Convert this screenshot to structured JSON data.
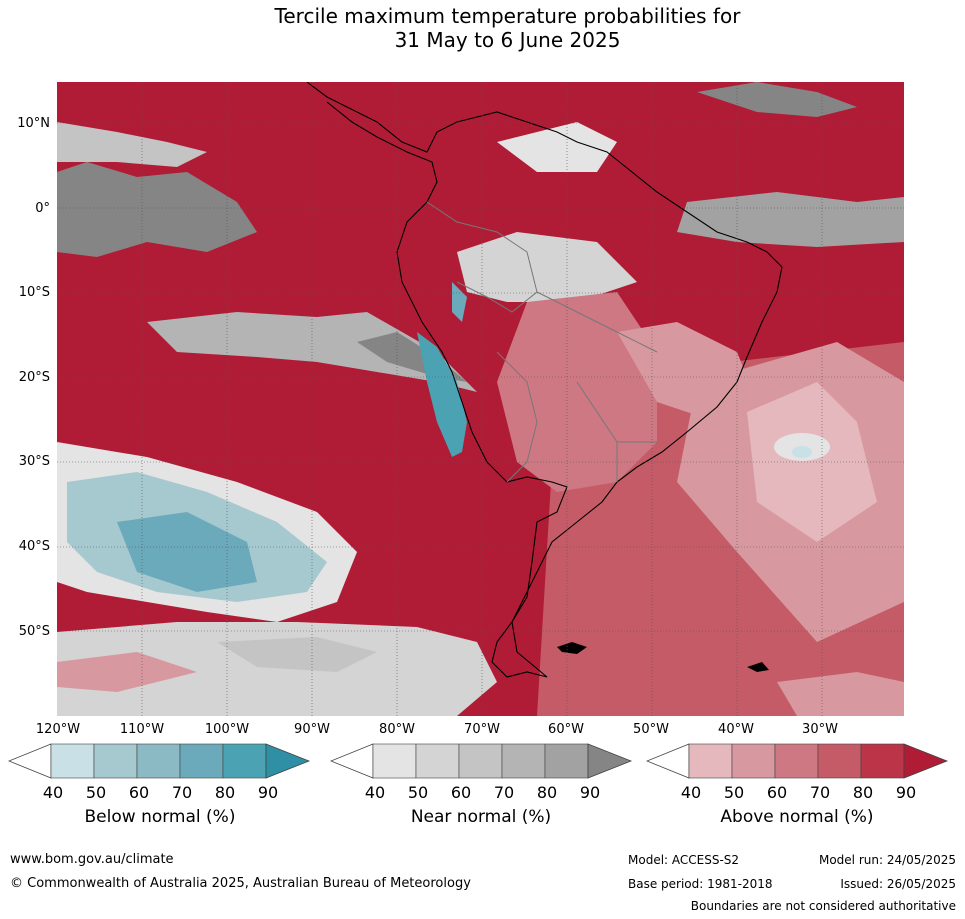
{
  "title": {
    "line1": "Tercile maximum temperature probabilities for",
    "line2": "31 May to 6 June 2025"
  },
  "lat_labels": [
    "10°N",
    "0°",
    "10°S",
    "20°S",
    "30°S",
    "40°S",
    "50°S"
  ],
  "lon_labels": [
    "120°W",
    "110°W",
    "100°W",
    "90°W",
    "80°W",
    "70°W",
    "60°W",
    "50°W",
    "40°W",
    "30°W"
  ],
  "colorbars": [
    {
      "title": "Below normal (%)",
      "ticks": [
        "40",
        "50",
        "60",
        "70",
        "80",
        "90"
      ],
      "colors": [
        "#c8e0e6",
        "#a6c8cf",
        "#8bbac4",
        "#6aaabb",
        "#4ba2b2",
        "#2e8fa5"
      ]
    },
    {
      "title": "Near normal (%)",
      "ticks": [
        "40",
        "50",
        "60",
        "70",
        "80",
        "90"
      ],
      "colors": [
        "#e4e4e4",
        "#d4d4d4",
        "#c4c4c4",
        "#b4b4b4",
        "#a2a2a2",
        "#858585"
      ]
    },
    {
      "title": "Above normal (%)",
      "ticks": [
        "40",
        "50",
        "60",
        "70",
        "80",
        "90"
      ],
      "colors": [
        "#e4b8bd",
        "#d7989f",
        "#cd7882",
        "#c55b67",
        "#bb3448",
        "#b01c36"
      ]
    }
  ],
  "footer": {
    "website": "www.bom.gov.au/climate",
    "copyright": "© Commonwealth of Australia 2025, Australian Bureau of Meteorology",
    "model": "Model: ACCESS-S2",
    "model_run": "Model run: 24/05/2025",
    "base_period": "Base period: 1981-2018",
    "issued": "Issued: 26/05/2025",
    "disclaimer": "Boundaries are not considered authoritative"
  }
}
